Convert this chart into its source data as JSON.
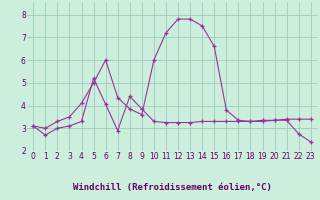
{
  "xlabel": "Windchill (Refroidissement éolien,°C)",
  "bg_color": "#cceedd",
  "line_color": "#993399",
  "grid_color": "#99ccbb",
  "tick_color": "#660066",
  "xlim": [
    -0.5,
    23.5
  ],
  "ylim": [
    2.0,
    8.55
  ],
  "yticks": [
    2,
    3,
    4,
    5,
    6,
    7,
    8
  ],
  "xticks": [
    0,
    1,
    2,
    3,
    4,
    5,
    6,
    7,
    8,
    9,
    10,
    11,
    12,
    13,
    14,
    15,
    16,
    17,
    18,
    19,
    20,
    21,
    22,
    23
  ],
  "series1_x": [
    0,
    1,
    2,
    3,
    4,
    5,
    6,
    7,
    8,
    9,
    10,
    11,
    12,
    13,
    14,
    15,
    16,
    17,
    18,
    19,
    20,
    21,
    22,
    23
  ],
  "series1_y": [
    3.1,
    2.7,
    3.0,
    3.1,
    3.3,
    5.2,
    4.05,
    2.9,
    4.4,
    3.85,
    3.3,
    3.25,
    3.25,
    3.25,
    3.3,
    3.3,
    3.3,
    3.3,
    3.3,
    3.35,
    3.35,
    3.4,
    3.4,
    3.4
  ],
  "series2_x": [
    0,
    1,
    2,
    3,
    4,
    5,
    6,
    7,
    8,
    9,
    10,
    11,
    12,
    13,
    14,
    15,
    16,
    17,
    18,
    19,
    20,
    21,
    22,
    23
  ],
  "series2_y": [
    3.1,
    3.0,
    3.3,
    3.5,
    4.1,
    5.0,
    6.0,
    4.35,
    3.85,
    3.6,
    6.0,
    7.2,
    7.8,
    7.8,
    7.5,
    6.6,
    3.8,
    3.35,
    3.3,
    3.3,
    3.35,
    3.35,
    2.75,
    2.4
  ]
}
